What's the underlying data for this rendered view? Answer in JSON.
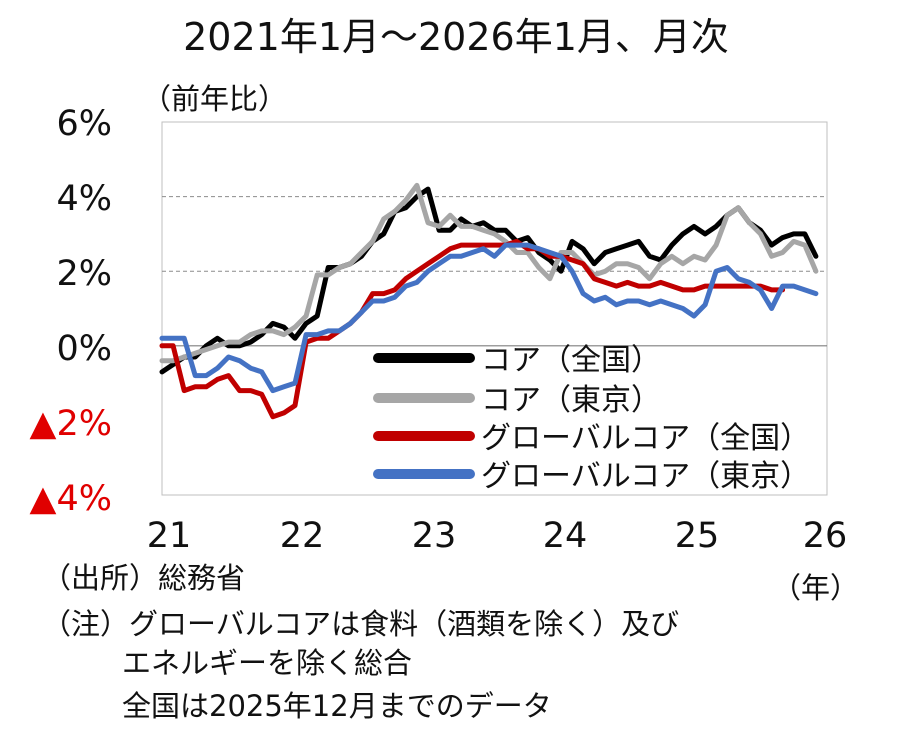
{
  "chart_data": {
    "type": "line",
    "title": "2021年1月～2026年1月、月次",
    "ylabel": "（前年比）",
    "xlabel": "（年）",
    "ylim": [
      -4,
      6
    ],
    "yticks": [
      {
        "label": "6%",
        "value": 6,
        "negative": false
      },
      {
        "label": "4%",
        "value": 4,
        "negative": false
      },
      {
        "label": "2%",
        "value": 2,
        "negative": false
      },
      {
        "label": "0%",
        "value": 0,
        "negative": false
      },
      {
        "label": "▲2%",
        "value": -2,
        "negative": true
      },
      {
        "label": "▲4%",
        "value": -4,
        "negative": true
      }
    ],
    "xticks": [
      {
        "label": "21",
        "value": 2021
      },
      {
        "label": "22",
        "value": 2022
      },
      {
        "label": "23",
        "value": 2023
      },
      {
        "label": "24",
        "value": 2024
      },
      {
        "label": "25",
        "value": 2025
      },
      {
        "label": "26",
        "value": 2026
      }
    ],
    "xlim": [
      2021,
      2026
    ],
    "x_start": 2021,
    "step": 0.08333,
    "gridlines": [
      2,
      4
    ],
    "series": [
      {
        "name": "コア（全国）",
        "color": "#000000",
        "values": [
          -0.7,
          -0.5,
          -0.3,
          -0.3,
          0.0,
          0.2,
          0.0,
          0.0,
          0.1,
          0.3,
          0.6,
          0.5,
          0.2,
          0.6,
          0.8,
          2.1,
          2.1,
          2.2,
          2.4,
          2.8,
          3.0,
          3.6,
          3.7,
          4.0,
          4.2,
          3.1,
          3.1,
          3.4,
          3.2,
          3.3,
          3.1,
          3.1,
          2.8,
          2.9,
          2.5,
          2.3,
          2.0,
          2.8,
          2.6,
          2.2,
          2.5,
          2.6,
          2.7,
          2.8,
          2.4,
          2.3,
          2.7,
          3.0,
          3.2,
          3.0,
          3.2,
          3.5,
          3.7,
          3.3,
          3.1,
          2.7,
          2.9,
          3.0,
          3.0,
          2.4
        ]
      },
      {
        "name": "コア（東京）",
        "color": "#a6a6a6",
        "values": [
          -0.4,
          -0.4,
          -0.3,
          -0.2,
          -0.1,
          0.0,
          0.1,
          0.1,
          0.3,
          0.4,
          0.4,
          0.3,
          0.5,
          0.8,
          1.9,
          1.9,
          2.1,
          2.2,
          2.5,
          2.8,
          3.4,
          3.6,
          3.9,
          4.3,
          3.3,
          3.2,
          3.5,
          3.2,
          3.2,
          3.1,
          3.0,
          2.8,
          2.5,
          2.5,
          2.1,
          1.8,
          2.5,
          2.5,
          2.2,
          1.9,
          2.0,
          2.2,
          2.2,
          2.1,
          1.8,
          2.2,
          2.4,
          2.2,
          2.4,
          2.3,
          2.7,
          3.5,
          3.7,
          3.3,
          3.0,
          2.4,
          2.5,
          2.8,
          2.7,
          2.0
        ]
      },
      {
        "name": "グローバルコア（全国）",
        "color": "#c00000",
        "values": [
          0.0,
          0.0,
          -1.2,
          -1.1,
          -1.1,
          -0.9,
          -0.8,
          -1.2,
          -1.2,
          -1.3,
          -1.9,
          -1.8,
          -1.6,
          0.1,
          0.2,
          0.2,
          0.4,
          0.6,
          0.9,
          1.4,
          1.4,
          1.5,
          1.8,
          2.0,
          2.2,
          2.4,
          2.6,
          2.7,
          2.7,
          2.7,
          2.7,
          2.7,
          2.8,
          2.6,
          2.6,
          2.4,
          2.4,
          2.3,
          2.2,
          1.8,
          1.7,
          1.6,
          1.7,
          1.6,
          1.6,
          1.7,
          1.6,
          1.5,
          1.5,
          1.6,
          1.6,
          1.6,
          1.6,
          1.6,
          1.6,
          1.5,
          1.5
        ]
      },
      {
        "name": "グローバルコア（東京）",
        "color": "#4472c4",
        "values": [
          0.2,
          0.2,
          0.2,
          -0.8,
          -0.8,
          -0.6,
          -0.3,
          -0.4,
          -0.6,
          -0.7,
          -1.2,
          -1.1,
          -1.0,
          0.3,
          0.3,
          0.4,
          0.4,
          0.6,
          0.9,
          1.2,
          1.2,
          1.3,
          1.6,
          1.7,
          2.0,
          2.2,
          2.4,
          2.4,
          2.5,
          2.6,
          2.4,
          2.7,
          2.7,
          2.7,
          2.6,
          2.5,
          2.4,
          2.0,
          1.4,
          1.2,
          1.3,
          1.1,
          1.2,
          1.2,
          1.1,
          1.2,
          1.1,
          1.0,
          0.8,
          1.1,
          2.0,
          2.1,
          1.8,
          1.7,
          1.5,
          1.0,
          1.6,
          1.6,
          1.5,
          1.4
        ]
      }
    ]
  },
  "notes": {
    "source": "（出所）総務省",
    "note_line1": "（注）グローバルコアは食料（酒類を除く）及び",
    "note_line2": "エネルギーを除く総合",
    "note_line3": "全国は2025年12月までのデータ"
  }
}
